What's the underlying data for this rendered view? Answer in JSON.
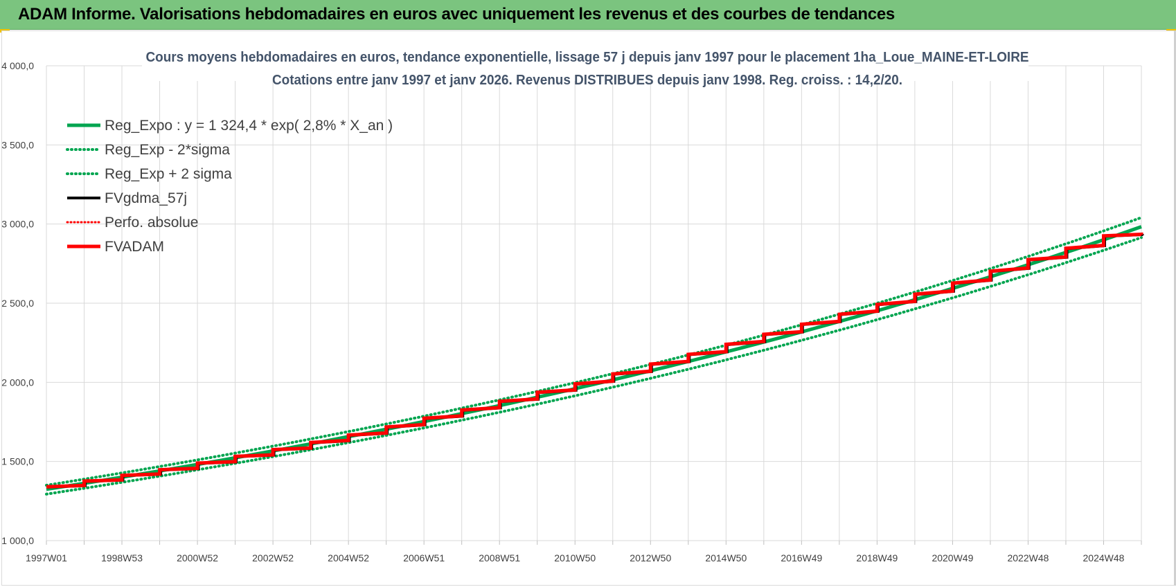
{
  "header": {
    "title": "ADAM Informe. Valorisations hebdomadaires en euros avec uniquement les revenus et des courbes de tendances"
  },
  "chart_data": {
    "type": "line",
    "title_line1": "Cours moyens hebdomadaires en euros, tendance exponentielle, lissage 57 j depuis janv 1997  pour le placement 1ha_Loue_MAINE-ET-LOIRE",
    "title_line2": "Cotations entre janv 1997 et janv 2026. Revenus DISTRIBUES depuis janv 1998.  Reg. croiss. : 14,2/20.",
    "x_range_years": [
      1997,
      2026
    ],
    "x_tick_labels": [
      "1997W01",
      "1998W53",
      "2000W52",
      "2002W52",
      "2004W52",
      "2006W51",
      "2008W51",
      "2010W50",
      "2012W50",
      "2014W50",
      "2016W49",
      "2018W49",
      "2020W49",
      "2022W48",
      "2024W48"
    ],
    "ylim": [
      1000,
      4000
    ],
    "y_ticks": [
      1000,
      1500,
      2000,
      2500,
      3000,
      3500,
      4000
    ],
    "y_tick_labels": [
      "1 000,0",
      "1 500,0",
      "2 000,0",
      "2 500,0",
      "3 000,0",
      "3 500,0",
      "4 000,0"
    ],
    "grid": true,
    "legend_position": "top-left",
    "series": [
      {
        "name": "Reg_Expo : y = 1 324,4 * exp( 2,8% *  X_an )",
        "color": "#00a550",
        "style": "solid-thick",
        "a": 1324.4,
        "rate": 0.028
      },
      {
        "name": "Reg_Exp - 2*sigma",
        "color": "#00a550",
        "style": "dotted",
        "a": 1294,
        "rate": 0.028
      },
      {
        "name": "Reg_Exp + 2 sigma",
        "color": "#00a550",
        "style": "dotted",
        "a": 1350,
        "rate": 0.028
      },
      {
        "name": "FVgdma_57j",
        "color": "#000000",
        "style": "solid"
      },
      {
        "name": "Perfo. absolue",
        "color": "#ff0000",
        "style": "dotted"
      },
      {
        "name": "FVADAM",
        "color": "#ff0000",
        "style": "solid-thick",
        "step_years": [
          1997,
          1998,
          1999,
          2000,
          2001,
          2002,
          2003,
          2004,
          2005,
          2006,
          2007,
          2008,
          2009,
          2010,
          2011,
          2012,
          2013,
          2014,
          2015,
          2016,
          2017,
          2018,
          2019,
          2020,
          2021,
          2022,
          2023,
          2024,
          2025,
          2026
        ],
        "step_start_values": [
          1340,
          1376,
          1412,
          1448,
          1490,
          1532,
          1575,
          1620,
          1667,
          1718,
          1773,
          1825,
          1880,
          1937,
          1990,
          2053,
          2115,
          2177,
          2240,
          2303,
          2367,
          2430,
          2492,
          2557,
          2627,
          2702,
          2775,
          2847,
          2925,
          2932
        ],
        "step_end_values": [
          1349,
          1384,
          1421,
          1457,
          1499,
          1542,
          1585,
          1633,
          1680,
          1733,
          1788,
          1840,
          1895,
          1952,
          2008,
          2070,
          2132,
          2194,
          2258,
          2320,
          2385,
          2450,
          2512,
          2577,
          2647,
          2722,
          2792,
          2865,
          2935,
          2935
        ]
      }
    ]
  }
}
